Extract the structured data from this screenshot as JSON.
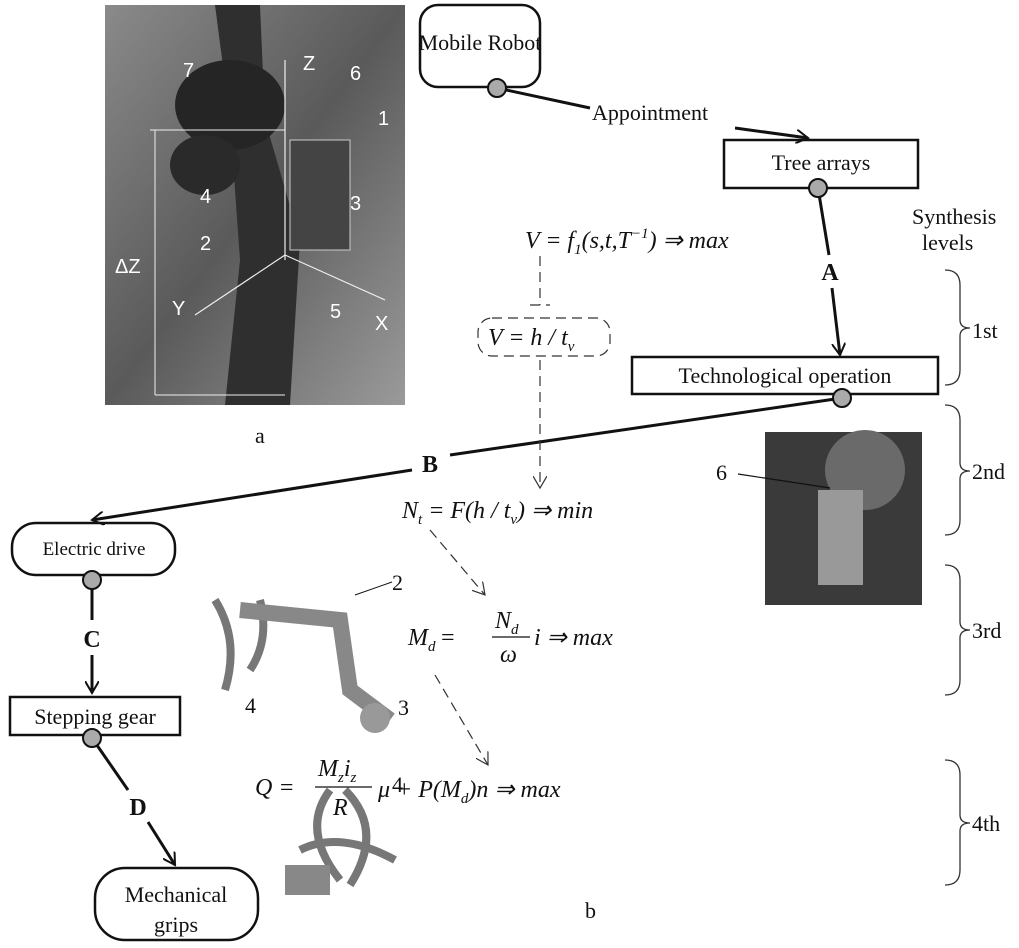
{
  "nodes": [
    {
      "label": "Mobile Robot"
    },
    {
      "label": "Tree arrays"
    },
    {
      "label": "Technological operation"
    },
    {
      "label": "Electric drive"
    },
    {
      "label": "Stepping gear"
    },
    {
      "label": [
        "Mechanical",
        "grips"
      ]
    }
  ],
  "appointment": "Appointment",
  "edges": [
    "A",
    "B",
    "C",
    "D"
  ],
  "synthesis": [
    "Synthesis",
    "levels"
  ],
  "levels": [
    "1st",
    "2nd",
    "3rd",
    "4th"
  ],
  "formulas": {
    "v": [
      "V = f",
      "1",
      "(s,t,T",
      "−1",
      ") ⇒ max"
    ],
    "v2": [
      "V = h / t",
      "v"
    ],
    "nt": [
      "N",
      "t",
      " = F(h / t",
      "v",
      ") ⇒ min"
    ],
    "md": [
      "M",
      "d",
      "=",
      "N",
      "d",
      "ω",
      "i ⇒ max"
    ],
    "q": [
      "Q =",
      "M",
      "z",
      "i",
      "z",
      "R",
      "μ + P",
      "(M",
      "d",
      ")n ⇒ max"
    ]
  },
  "captions": [
    "a",
    "b"
  ],
  "photo_labels": [
    "7",
    "Z",
    "6",
    "1",
    "3",
    "4",
    "2",
    "ΔZ",
    "Y",
    "5",
    "X"
  ],
  "inset_labels": [
    "6",
    "2",
    "4",
    "3",
    "4"
  ]
}
